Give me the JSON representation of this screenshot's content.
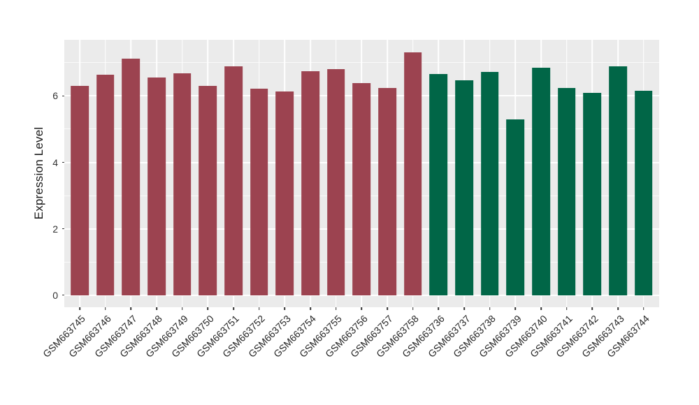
{
  "chart_data": {
    "type": "bar",
    "title": "",
    "xlabel": "",
    "ylabel": "Expression Level",
    "ylim": [
      0,
      7.7
    ],
    "y_major_ticks": [
      0,
      2,
      4,
      6
    ],
    "y_minor_gridlines": [
      1,
      3,
      5,
      7
    ],
    "grid": "on",
    "legend_position": "none",
    "panel_background_color": "#EBEBEB",
    "gridline_color": "#FFFFFF",
    "group_colors": {
      "left-group": "#9C4350",
      "right-group": "#016647"
    },
    "bars": [
      {
        "label": "GSM663745",
        "value": 6.31,
        "color": "#9C4350"
      },
      {
        "label": "GSM663746",
        "value": 6.65,
        "color": "#9C4350"
      },
      {
        "label": "GSM663747",
        "value": 7.12,
        "color": "#9C4350"
      },
      {
        "label": "GSM663748",
        "value": 6.55,
        "color": "#9C4350"
      },
      {
        "label": "GSM663749",
        "value": 6.68,
        "color": "#9C4350"
      },
      {
        "label": "GSM663750",
        "value": 6.31,
        "color": "#9C4350"
      },
      {
        "label": "GSM663751",
        "value": 6.9,
        "color": "#9C4350"
      },
      {
        "label": "GSM663752",
        "value": 6.22,
        "color": "#9C4350"
      },
      {
        "label": "GSM663753",
        "value": 6.14,
        "color": "#9C4350"
      },
      {
        "label": "GSM663754",
        "value": 6.75,
        "color": "#9C4350"
      },
      {
        "label": "GSM663755",
        "value": 6.81,
        "color": "#9C4350"
      },
      {
        "label": "GSM663756",
        "value": 6.38,
        "color": "#9C4350"
      },
      {
        "label": "GSM663757",
        "value": 6.24,
        "color": "#9C4350"
      },
      {
        "label": "GSM663758",
        "value": 7.32,
        "color": "#9C4350"
      },
      {
        "label": "GSM663736",
        "value": 6.67,
        "color": "#016647"
      },
      {
        "label": "GSM663737",
        "value": 6.47,
        "color": "#016647"
      },
      {
        "label": "GSM663738",
        "value": 6.73,
        "color": "#016647"
      },
      {
        "label": "GSM663739",
        "value": 5.3,
        "color": "#016647"
      },
      {
        "label": "GSM663740",
        "value": 6.85,
        "color": "#016647"
      },
      {
        "label": "GSM663741",
        "value": 6.23,
        "color": "#016647"
      },
      {
        "label": "GSM663742",
        "value": 6.09,
        "color": "#016647"
      },
      {
        "label": "GSM663743",
        "value": 6.89,
        "color": "#016647"
      },
      {
        "label": "GSM663744",
        "value": 6.16,
        "color": "#016647"
      }
    ]
  }
}
